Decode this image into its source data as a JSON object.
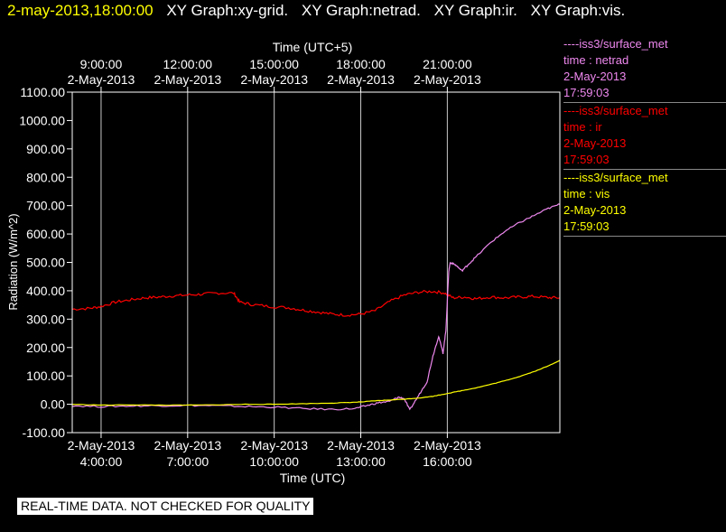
{
  "header": {
    "timestamp": "2-may-2013,18:00:00",
    "graphs": [
      "XY Graph:xy-grid.",
      "XY Graph:netrad.",
      "XY Graph:ir.",
      "XY Graph:vis."
    ]
  },
  "legend": [
    {
      "series": "----iss3/surface_met",
      "field": "time : netrad",
      "date": "2-May-2013",
      "time": "17:59:03",
      "color": "#ee88ee"
    },
    {
      "series": "----iss3/surface_met",
      "field": "time : ir",
      "date": "2-May-2013",
      "time": "17:59:03",
      "color": "#ff0000"
    },
    {
      "series": "----iss3/surface_met",
      "field": "time : vis",
      "date": "2-May-2013",
      "time": "17:59:03",
      "color": "#ffff00"
    }
  ],
  "qc_notice": "REAL-TIME DATA. NOT CHECKED FOR QUALITY",
  "chart_data": {
    "type": "line",
    "xlabel": "Time (UTC)",
    "x2label": "Time (UTC+5)",
    "ylabel": "Radiation (W/m^2)",
    "xlim": [
      3,
      19.9
    ],
    "ylim": [
      -100,
      1100
    ],
    "yticks": [
      -100,
      0,
      100,
      200,
      300,
      400,
      500,
      600,
      700,
      800,
      900,
      1000,
      1100
    ],
    "ytick_labels": [
      "-100.00",
      "0.00",
      "100.00",
      "200.00",
      "300.00",
      "400.00",
      "500.00",
      "600.00",
      "700.00",
      "800.00",
      "900.00",
      "1000.00",
      "1100.00"
    ],
    "xticks_bottom": [
      {
        "x": 4,
        "date": "2-May-2013",
        "time": "4:00:00"
      },
      {
        "x": 7,
        "date": "2-May-2013",
        "time": "7:00:00"
      },
      {
        "x": 10,
        "date": "2-May-2013",
        "time": "10:00:00"
      },
      {
        "x": 13,
        "date": "2-May-2013",
        "time": "13:00:00"
      },
      {
        "x": 16,
        "date": "2-May-2013",
        "time": "16:00:00"
      }
    ],
    "xticks_top": [
      {
        "x": 4,
        "time": "9:00:00",
        "date": "2-May-2013"
      },
      {
        "x": 7,
        "time": "12:00:00",
        "date": "2-May-2013"
      },
      {
        "x": 10,
        "time": "15:00:00",
        "date": "2-May-2013"
      },
      {
        "x": 13,
        "time": "18:00:00",
        "date": "2-May-2013"
      },
      {
        "x": 16,
        "time": "21:00:00",
        "date": "2-May-2013"
      }
    ],
    "grid": "vertical",
    "series": [
      {
        "field": "ir",
        "color": "#ff0000",
        "points": [
          [
            3.0,
            335
          ],
          [
            3.6,
            338
          ],
          [
            4.0,
            345
          ],
          [
            4.5,
            360
          ],
          [
            5.0,
            368
          ],
          [
            5.5,
            375
          ],
          [
            6.0,
            378
          ],
          [
            6.5,
            382
          ],
          [
            7.0,
            385
          ],
          [
            7.5,
            388
          ],
          [
            8.0,
            392
          ],
          [
            8.6,
            392
          ],
          [
            8.8,
            360
          ],
          [
            9.2,
            352
          ],
          [
            9.8,
            345
          ],
          [
            10.5,
            340
          ],
          [
            11.0,
            332
          ],
          [
            11.5,
            325
          ],
          [
            12.0,
            318
          ],
          [
            12.5,
            314
          ],
          [
            13.0,
            318
          ],
          [
            13.5,
            330
          ],
          [
            14.0,
            362
          ],
          [
            14.5,
            385
          ],
          [
            15.0,
            395
          ],
          [
            15.5,
            398
          ],
          [
            15.9,
            392
          ],
          [
            16.2,
            375
          ],
          [
            16.6,
            378
          ],
          [
            17.0,
            372
          ],
          [
            17.5,
            378
          ],
          [
            18.0,
            375
          ],
          [
            18.5,
            378
          ],
          [
            19.0,
            380
          ],
          [
            19.5,
            376
          ],
          [
            19.9,
            375
          ]
        ]
      },
      {
        "field": "netrad",
        "color": "#ee88ee",
        "points": [
          [
            3.0,
            -5
          ],
          [
            4.0,
            -8
          ],
          [
            5.0,
            -6
          ],
          [
            6.0,
            -5
          ],
          [
            7.0,
            -4
          ],
          [
            8.0,
            -5
          ],
          [
            9.0,
            -8
          ],
          [
            10.0,
            -10
          ],
          [
            11.0,
            -15
          ],
          [
            12.0,
            -18
          ],
          [
            12.8,
            -15
          ],
          [
            13.2,
            -5
          ],
          [
            13.6,
            5
          ],
          [
            14.0,
            10
          ],
          [
            14.3,
            25
          ],
          [
            14.5,
            20
          ],
          [
            14.7,
            -20
          ],
          [
            15.0,
            30
          ],
          [
            15.3,
            80
          ],
          [
            15.5,
            170
          ],
          [
            15.7,
            240
          ],
          [
            15.85,
            180
          ],
          [
            15.95,
            260
          ],
          [
            16.05,
            470
          ],
          [
            16.1,
            500
          ],
          [
            16.3,
            490
          ],
          [
            16.5,
            470
          ],
          [
            16.7,
            490
          ],
          [
            17.0,
            520
          ],
          [
            17.5,
            570
          ],
          [
            18.0,
            610
          ],
          [
            18.5,
            640
          ],
          [
            19.0,
            665
          ],
          [
            19.5,
            690
          ],
          [
            19.9,
            705
          ]
        ]
      },
      {
        "field": "vis",
        "color": "#ffff00",
        "points": [
          [
            3.0,
            0
          ],
          [
            4.0,
            -3
          ],
          [
            5.0,
            -2
          ],
          [
            6.0,
            -3
          ],
          [
            7.0,
            -3
          ],
          [
            8.0,
            -2
          ],
          [
            9.0,
            0
          ],
          [
            10.0,
            0
          ],
          [
            11.0,
            2
          ],
          [
            12.0,
            4
          ],
          [
            12.5,
            6
          ],
          [
            13.0,
            8
          ],
          [
            13.5,
            12
          ],
          [
            14.0,
            15
          ],
          [
            14.5,
            18
          ],
          [
            15.0,
            22
          ],
          [
            15.5,
            28
          ],
          [
            16.0,
            38
          ],
          [
            16.5,
            48
          ],
          [
            17.0,
            58
          ],
          [
            17.5,
            70
          ],
          [
            18.0,
            83
          ],
          [
            18.5,
            98
          ],
          [
            19.0,
            115
          ],
          [
            19.5,
            135
          ],
          [
            19.9,
            155
          ]
        ]
      }
    ]
  }
}
